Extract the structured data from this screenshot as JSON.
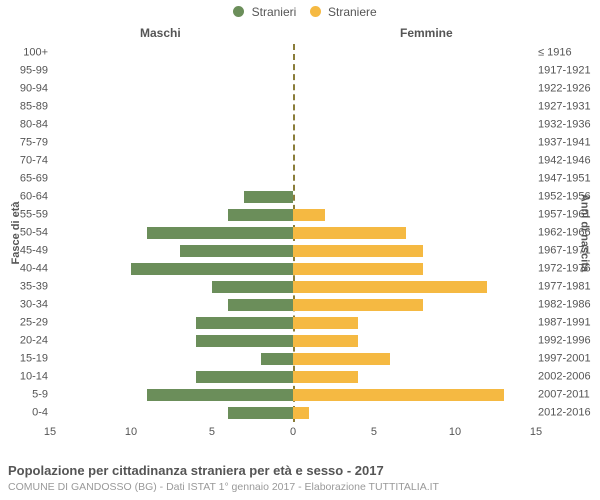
{
  "chart": {
    "type": "population-pyramid",
    "legend": {
      "male": {
        "label": "Stranieri",
        "color": "#6b8e5a"
      },
      "female": {
        "label": "Straniere",
        "color": "#f5b942"
      }
    },
    "section_titles": {
      "male": "Maschi",
      "female": "Femmine"
    },
    "axis_titles": {
      "left": "Fasce di età",
      "right": "Anni di nascita"
    },
    "age_bands": [
      {
        "age": "100+",
        "birth": "≤ 1916",
        "m": 0,
        "f": 0
      },
      {
        "age": "95-99",
        "birth": "1917-1921",
        "m": 0,
        "f": 0
      },
      {
        "age": "90-94",
        "birth": "1922-1926",
        "m": 0,
        "f": 0
      },
      {
        "age": "85-89",
        "birth": "1927-1931",
        "m": 0,
        "f": 0
      },
      {
        "age": "80-84",
        "birth": "1932-1936",
        "m": 0,
        "f": 0
      },
      {
        "age": "75-79",
        "birth": "1937-1941",
        "m": 0,
        "f": 0
      },
      {
        "age": "70-74",
        "birth": "1942-1946",
        "m": 0,
        "f": 0
      },
      {
        "age": "65-69",
        "birth": "1947-1951",
        "m": 0,
        "f": 0
      },
      {
        "age": "60-64",
        "birth": "1952-1956",
        "m": 3,
        "f": 0
      },
      {
        "age": "55-59",
        "birth": "1957-1961",
        "m": 4,
        "f": 2
      },
      {
        "age": "50-54",
        "birth": "1962-1966",
        "m": 9,
        "f": 7
      },
      {
        "age": "45-49",
        "birth": "1967-1971",
        "m": 7,
        "f": 8
      },
      {
        "age": "40-44",
        "birth": "1972-1976",
        "m": 10,
        "f": 8
      },
      {
        "age": "35-39",
        "birth": "1977-1981",
        "m": 5,
        "f": 12
      },
      {
        "age": "30-34",
        "birth": "1982-1986",
        "m": 4,
        "f": 8
      },
      {
        "age": "25-29",
        "birth": "1987-1991",
        "m": 6,
        "f": 4
      },
      {
        "age": "20-24",
        "birth": "1992-1996",
        "m": 6,
        "f": 4
      },
      {
        "age": "15-19",
        "birth": "1997-2001",
        "m": 2,
        "f": 6
      },
      {
        "age": "10-14",
        "birth": "2002-2006",
        "m": 6,
        "f": 4
      },
      {
        "age": "5-9",
        "birth": "2007-2011",
        "m": 9,
        "f": 13
      },
      {
        "age": "0-4",
        "birth": "2012-2016",
        "m": 4,
        "f": 1
      }
    ],
    "x_axis": {
      "max": 15,
      "ticks": [
        15,
        10,
        5,
        0,
        5,
        10,
        15
      ]
    },
    "colors": {
      "text": "#555555",
      "sub_text": "#999999",
      "center_line": "#8a7d3a",
      "background": "#ffffff"
    },
    "font_sizes": {
      "legend": 12,
      "ticks": 11,
      "section": 12,
      "title": 13,
      "subtitle": 10.5
    }
  },
  "footer": {
    "title": "Popolazione per cittadinanza straniera per età e sesso - 2017",
    "subtitle": "COMUNE DI GANDOSSO (BG) - Dati ISTAT 1° gennaio 2017 - Elaborazione TUTTITALIA.IT"
  }
}
